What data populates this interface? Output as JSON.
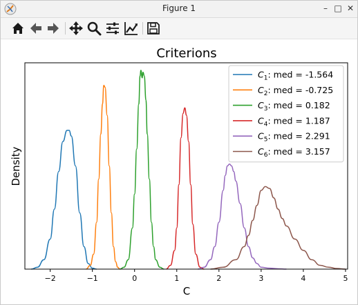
{
  "window": {
    "title": "Figure 1",
    "controls": {
      "minimize": "–",
      "maximize": "□",
      "close": "✕"
    }
  },
  "toolbar": {
    "tools": [
      {
        "name": "home-button",
        "icon": "home-icon"
      },
      {
        "name": "back-button",
        "icon": "arrow-left-icon"
      },
      {
        "name": "forward-button",
        "icon": "arrow-right-icon"
      },
      {
        "name": "pan-button",
        "icon": "move-icon"
      },
      {
        "name": "zoom-button",
        "icon": "magnifier-icon"
      },
      {
        "name": "configure-subplots-button",
        "icon": "sliders-icon"
      },
      {
        "name": "edit-axis-button",
        "icon": "line-chart-icon"
      },
      {
        "name": "save-button",
        "icon": "floppy-disk-icon"
      }
    ]
  },
  "chart_data": {
    "type": "line",
    "title": "Criterions",
    "xlabel": "C",
    "ylabel": "Density",
    "xlim": [
      -2.6,
      5.05
    ],
    "ylim": [
      0,
      1.1
    ],
    "xticks": [
      -2,
      -1,
      0,
      1,
      2,
      3,
      4,
      5
    ],
    "yticks": [],
    "grid": false,
    "legend_position": "top-right",
    "series": [
      {
        "name": "C1: med = -1.564",
        "sub": "1",
        "label_rest": ": med = -1.564",
        "color": "#1f77b4",
        "x": [
          -2.45,
          -2.3,
          -2.15,
          -2.0,
          -1.9,
          -1.8,
          -1.7,
          -1.6,
          -1.55,
          -1.5,
          -1.4,
          -1.3,
          -1.2,
          -1.1,
          -1.0,
          -0.9
        ],
        "y": [
          0.0,
          0.01,
          0.05,
          0.16,
          0.32,
          0.52,
          0.68,
          0.74,
          0.74,
          0.71,
          0.55,
          0.3,
          0.12,
          0.03,
          0.005,
          0.0
        ]
      },
      {
        "name": "C2: med = -0.725",
        "sub": "2",
        "label_rest": ": med = -0.725",
        "color": "#ff7f0e",
        "x": [
          -1.15,
          -1.05,
          -0.97,
          -0.9,
          -0.85,
          -0.8,
          -0.76,
          -0.73,
          -0.7,
          -0.65,
          -0.6,
          -0.55,
          -0.5,
          -0.45,
          -0.4,
          -0.35
        ],
        "y": [
          0.0,
          0.02,
          0.08,
          0.25,
          0.48,
          0.72,
          0.88,
          0.98,
          0.97,
          0.82,
          0.55,
          0.3,
          0.12,
          0.04,
          0.01,
          0.0
        ]
      },
      {
        "name": "C3: med = 0.182",
        "sub": "3",
        "label_rest": ": med = 0.182",
        "color": "#2ca02c",
        "x": [
          -0.35,
          -0.25,
          -0.15,
          -0.05,
          0.0,
          0.05,
          0.1,
          0.13,
          0.15,
          0.18,
          0.2,
          0.23,
          0.27,
          0.3,
          0.35,
          0.4,
          0.45,
          0.5,
          0.6,
          0.7
        ],
        "y": [
          0.0,
          0.01,
          0.05,
          0.22,
          0.4,
          0.64,
          0.88,
          1.03,
          1.06,
          1.02,
          1.05,
          1.03,
          0.9,
          0.72,
          0.48,
          0.25,
          0.12,
          0.05,
          0.01,
          0.0
        ]
      },
      {
        "name": "C4: med = 1.187",
        "sub": "4",
        "label_rest": ": med = 1.187",
        "color": "#d62728",
        "x": [
          0.75,
          0.85,
          0.95,
          1.0,
          1.05,
          1.1,
          1.15,
          1.19,
          1.23,
          1.28,
          1.33,
          1.38,
          1.45,
          1.55,
          1.65
        ],
        "y": [
          0.0,
          0.02,
          0.1,
          0.22,
          0.45,
          0.7,
          0.83,
          0.86,
          0.82,
          0.68,
          0.45,
          0.24,
          0.08,
          0.01,
          0.0
        ]
      },
      {
        "name": "C5: med = 2.291",
        "sub": "5",
        "label_rest": ": med = 2.291",
        "color": "#9467bd",
        "x": [
          1.5,
          1.65,
          1.8,
          1.9,
          2.0,
          2.1,
          2.15,
          2.2,
          2.25,
          2.3,
          2.35,
          2.4,
          2.5,
          2.6,
          2.7,
          2.8,
          2.9,
          3.0,
          3.2,
          3.4,
          3.6
        ],
        "y": [
          0.0,
          0.01,
          0.05,
          0.12,
          0.25,
          0.42,
          0.5,
          0.55,
          0.56,
          0.55,
          0.52,
          0.47,
          0.35,
          0.22,
          0.12,
          0.06,
          0.03,
          0.01,
          0.005,
          0.002,
          0.0
        ]
      },
      {
        "name": "C6: med = 3.157",
        "sub": "6",
        "label_rest": ": med = 3.157",
        "color": "#8c564b",
        "x": [
          1.8,
          2.1,
          2.4,
          2.6,
          2.7,
          2.8,
          2.9,
          3.0,
          3.1,
          3.2,
          3.3,
          3.4,
          3.5,
          3.6,
          3.8,
          4.0,
          4.2,
          4.4,
          4.6,
          4.8,
          5.0
        ],
        "y": [
          0.0,
          0.01,
          0.05,
          0.12,
          0.18,
          0.26,
          0.34,
          0.42,
          0.44,
          0.43,
          0.38,
          0.32,
          0.27,
          0.23,
          0.16,
          0.1,
          0.05,
          0.02,
          0.01,
          0.003,
          0.0
        ]
      }
    ]
  }
}
